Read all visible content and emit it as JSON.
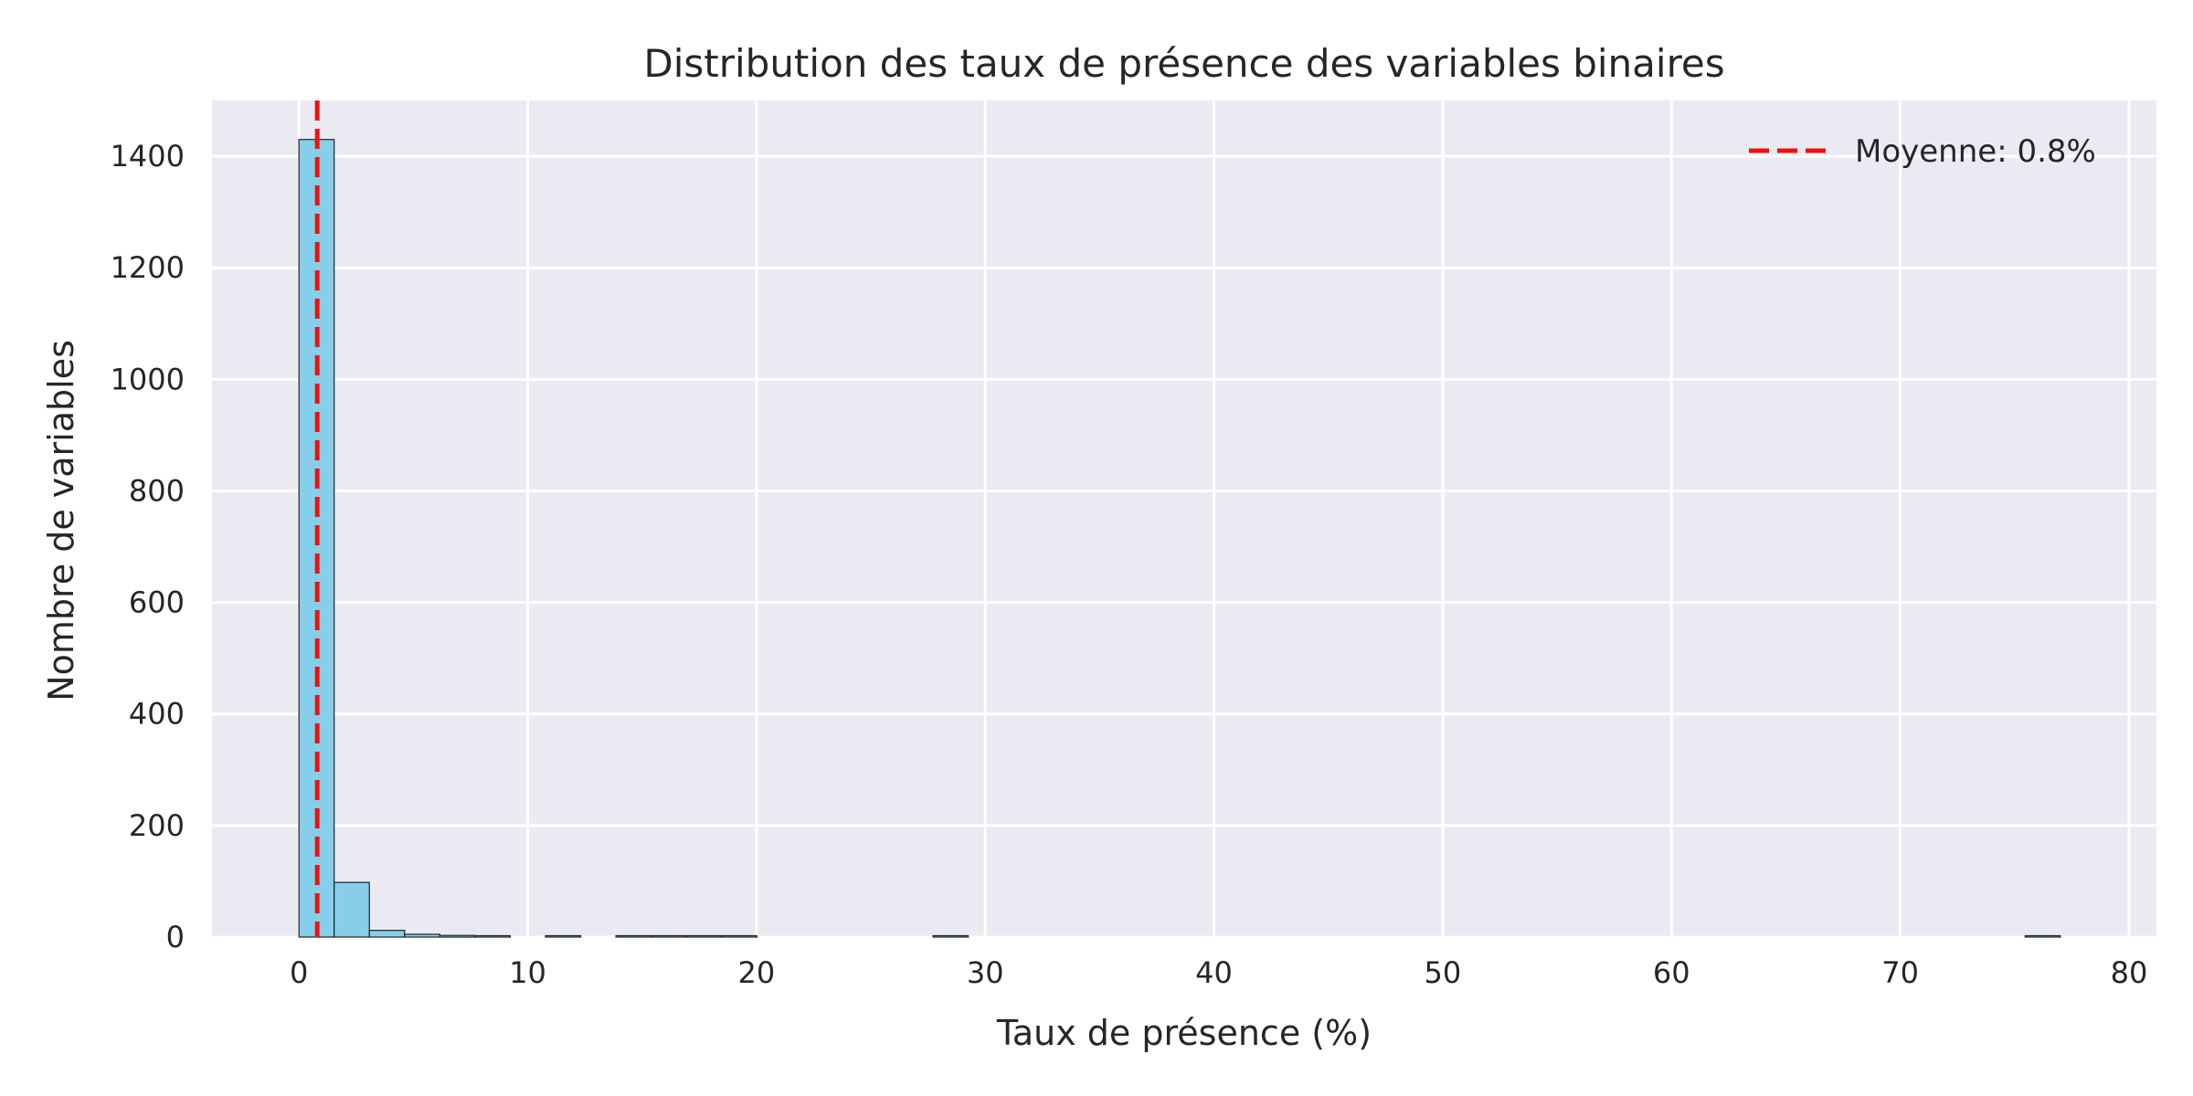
{
  "chart_data": {
    "type": "bar",
    "subtype": "histogram",
    "title": "Distribution des taux de présence des variables binaires",
    "xlabel": "Taux de présence (%)",
    "ylabel": "Nombre de variables",
    "xlim": [
      -3.8,
      81.2
    ],
    "ylim": [
      0,
      1500
    ],
    "xticks": [
      0,
      10,
      20,
      30,
      40,
      50,
      60,
      70,
      80
    ],
    "yticks": [
      0,
      200,
      400,
      600,
      800,
      1000,
      1200,
      1400
    ],
    "grid": true,
    "bin_width": 1.54,
    "bins": [
      {
        "x0": 0.0,
        "x1": 1.54,
        "count": 1430
      },
      {
        "x0": 1.54,
        "x1": 3.08,
        "count": 98
      },
      {
        "x0": 3.08,
        "x1": 4.62,
        "count": 12
      },
      {
        "x0": 4.62,
        "x1": 6.16,
        "count": 5
      },
      {
        "x0": 6.16,
        "x1": 7.7,
        "count": 3
      },
      {
        "x0": 7.7,
        "x1": 9.24,
        "count": 2
      },
      {
        "x0": 10.78,
        "x1": 12.32,
        "count": 1
      },
      {
        "x0": 13.86,
        "x1": 15.4,
        "count": 1
      },
      {
        "x0": 15.4,
        "x1": 16.94,
        "count": 1
      },
      {
        "x0": 16.94,
        "x1": 18.48,
        "count": 2
      },
      {
        "x0": 18.48,
        "x1": 20.02,
        "count": 2
      },
      {
        "x0": 27.72,
        "x1": 29.26,
        "count": 1
      },
      {
        "x0": 75.46,
        "x1": 77.0,
        "count": 1
      }
    ],
    "mean_line": {
      "value": 0.8,
      "label": "Moyenne: 0.8%",
      "color": "#ee1111",
      "style": "dashed"
    },
    "legend": {
      "position": "top-right",
      "entries": [
        "Moyenne: 0.8%"
      ]
    },
    "colors": {
      "bar_fill": "#87ceeb",
      "bar_edge": "#222222",
      "plot_bg": "#eaeaf2",
      "grid": "#ffffff"
    }
  }
}
